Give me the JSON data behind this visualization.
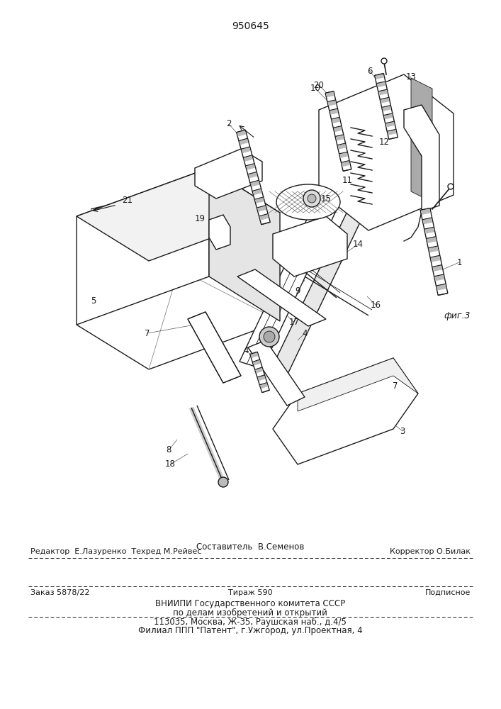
{
  "patent_number": "950645",
  "fig_label": "фиг.3",
  "line_color": "#1a1a1a",
  "footer": {
    "line1_center": "Составитель  В.Семенов",
    "line2_left": "Редактор  Е.Лазуренко  Техред М.Рейвес",
    "line2_right": "Корректор О.Билак",
    "line3_left": "Заказ 5878/22",
    "line3_center": "Тираж 590",
    "line3_right": "Подписное",
    "line4": "ВНИИПИ Государственного комитета СССР",
    "line5": "по делам изобретений и открытий",
    "line6": "113035, Москва, Ж-35, Раушская наб., д.4/5",
    "line7": "Филиал ППП \"Патент\", г.Ужгород, ул.Проектная, 4"
  }
}
